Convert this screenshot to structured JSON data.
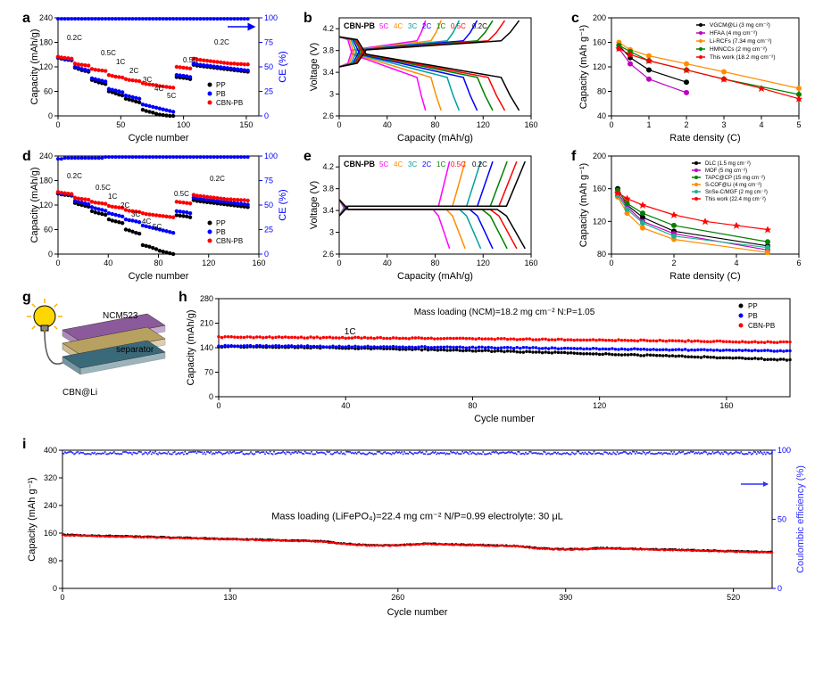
{
  "panel_a": {
    "type": "scatter",
    "label": "a",
    "xlabel": "Cycle number",
    "ylabel_left": "Capacity (mAh/g)",
    "ylabel_right": "CE (%)",
    "xlim": [
      0,
      160
    ],
    "xtick_step": 50,
    "ylim_left": [
      0,
      240
    ],
    "ytick_left_step": 60,
    "ylim_right": [
      0,
      100
    ],
    "ytick_right_step": 25,
    "series": {
      "PP": {
        "color": "#000000",
        "y": [
          142,
          140,
          138,
          137,
          136,
          118,
          115,
          112,
          110,
          108,
          88,
          85,
          82,
          80,
          78,
          60,
          58,
          55,
          52,
          50,
          42,
          40,
          38,
          35,
          33,
          15,
          12,
          10,
          8,
          5,
          3,
          2,
          1,
          0,
          0,
          95,
          94,
          93,
          92,
          90,
          125,
          123,
          122,
          121,
          120,
          119,
          118,
          117,
          116,
          115,
          114,
          113,
          112,
          111,
          110,
          109,
          108
        ]
      },
      "PB": {
        "color": "#0000ff",
        "y": [
          143,
          141,
          139,
          138,
          137,
          120,
          118,
          115,
          113,
          111,
          92,
          90,
          88,
          86,
          84,
          66,
          64,
          62,
          60,
          58,
          50,
          48,
          46,
          44,
          42,
          28,
          26,
          24,
          22,
          20,
          18,
          16,
          14,
          12,
          10,
          100,
          99,
          98,
          97,
          95,
          128,
          126,
          125,
          124,
          123,
          122,
          121,
          120,
          119,
          118,
          117,
          116,
          115,
          114,
          113,
          112,
          111
        ]
      },
      "CBN-PB": {
        "color": "#ff0000",
        "y": [
          145,
          143,
          142,
          141,
          140,
          128,
          126,
          125,
          124,
          123,
          115,
          113,
          112,
          111,
          110,
          100,
          98,
          96,
          95,
          94,
          90,
          88,
          87,
          86,
          85,
          80,
          78,
          77,
          76,
          75,
          73,
          72,
          71,
          70,
          69,
          120,
          119,
          118,
          117,
          116,
          140,
          138,
          137,
          136,
          135,
          134,
          133,
          132,
          131,
          130,
          129,
          128,
          128,
          127,
          127,
          126,
          126
        ]
      }
    },
    "ce": {
      "color": "#0000ff",
      "y": [
        99,
        99,
        99,
        99,
        99,
        99,
        99,
        99,
        99,
        99,
        99,
        99,
        99,
        99,
        99,
        99,
        99,
        99,
        99,
        99,
        99,
        99,
        99,
        99,
        99,
        99,
        99,
        99,
        99,
        99,
        99,
        99,
        99,
        99,
        99,
        99,
        99,
        99,
        99,
        99,
        99,
        99,
        99,
        99,
        99,
        99,
        99,
        99,
        99,
        99,
        99,
        99,
        99,
        99,
        99,
        99,
        99
      ]
    },
    "c_rates": {
      "0.2C_1": 3,
      "0.5C_1": 16,
      "1C": 26,
      "2C": 36,
      "3C": 46,
      "4C": 56,
      "5C": 66,
      "0.5C_2": 84,
      "0.2C_2": 110
    },
    "marker_size": 3,
    "background": "#ffffff",
    "label_fontsize": 11
  },
  "panel_b": {
    "type": "line",
    "label": "b",
    "xlabel": "Capacity (mAh/g)",
    "ylabel": "Voltage (V)",
    "xlim": [
      0,
      160
    ],
    "xtick_step": 40,
    "ylim": [
      2.6,
      4.4
    ],
    "ytick_step": 0.4,
    "title": "CBN-PB",
    "title_fontsize": 9,
    "series": {
      "0.2C": {
        "color": "#000000",
        "cap": 150
      },
      "0.5C": {
        "color": "#ff0000",
        "cap": 138
      },
      "1C": {
        "color": "#008000",
        "cap": 128
      },
      "2C": {
        "color": "#0000ff",
        "cap": 115
      },
      "3C": {
        "color": "#00a0a0",
        "cap": 100
      },
      "4C": {
        "color": "#ff8c00",
        "cap": 85
      },
      "5C": {
        "color": "#ff00ff",
        "cap": 72
      }
    },
    "line_width": 1.5,
    "background": "#ffffff",
    "label_fontsize": 11
  },
  "panel_c": {
    "type": "line-scatter",
    "label": "c",
    "xlabel": "Rate density (C)",
    "ylabel": "Capacity (mAh g⁻¹)",
    "xlim": [
      0,
      5
    ],
    "xtick_step": 1,
    "ylim": [
      40,
      200
    ],
    "ytick_step": 40,
    "series": {
      "VGCM@Li (3 mg cm⁻²)": {
        "color": "#000000",
        "marker": "circle",
        "x": [
          0.2,
          0.5,
          1,
          2
        ],
        "y": [
          155,
          135,
          115,
          95
        ]
      },
      "HFAA (4 mg cm⁻²)": {
        "color": "#c000c0",
        "marker": "circle",
        "x": [
          0.2,
          0.5,
          1,
          2
        ],
        "y": [
          150,
          125,
          100,
          78
        ]
      },
      "Li-RCFs (7.34 mg cm⁻²)": {
        "color": "#ff8c00",
        "marker": "triangle",
        "x": [
          0.2,
          0.5,
          1,
          2,
          3,
          5
        ],
        "y": [
          160,
          148,
          138,
          125,
          112,
          85
        ]
      },
      "HMNCCs (2 mg cm⁻²)": {
        "color": "#008000",
        "marker": "circle",
        "x": [
          0.2,
          0.5,
          1,
          2,
          3,
          5
        ],
        "y": [
          155,
          145,
          130,
          115,
          100,
          75
        ]
      },
      "This work (18.2 mg cm⁻²)": {
        "color": "#ff0000",
        "marker": "star",
        "x": [
          0.2,
          0.5,
          1,
          2,
          3,
          4,
          5
        ],
        "y": [
          150,
          140,
          130,
          115,
          100,
          85,
          68
        ]
      }
    },
    "marker_size": 4,
    "line_width": 1.2,
    "background": "#ffffff",
    "label_fontsize": 11
  },
  "panel_d": {
    "type": "scatter",
    "label": "d",
    "xlabel": "Cycle number",
    "ylabel_left": "Capacity (mAh/g)",
    "ylabel_right": "CE (%)",
    "xlim": [
      0,
      160
    ],
    "xtick_step": 40,
    "ylim_left": [
      0,
      240
    ],
    "ytick_left_step": 60,
    "ylim_right": [
      0,
      100
    ],
    "ytick_right_step": 25,
    "series": {
      "PP": {
        "color": "#000000",
        "y": [
          148,
          146,
          145,
          144,
          143,
          125,
          122,
          120,
          118,
          116,
          105,
          102,
          100,
          98,
          96,
          85,
          82,
          80,
          78,
          76,
          60,
          58,
          55,
          52,
          50,
          22,
          20,
          18,
          15,
          12,
          8,
          6,
          4,
          2,
          0,
          95,
          94,
          93,
          92,
          90,
          132,
          130,
          129,
          128,
          127,
          126,
          125,
          124,
          123,
          122,
          121,
          120,
          119,
          118,
          117,
          116,
          115
        ]
      },
      "PB": {
        "color": "#0000ff",
        "y": [
          150,
          148,
          147,
          146,
          145,
          130,
          128,
          126,
          124,
          122,
          115,
          112,
          110,
          108,
          106,
          100,
          98,
          96,
          94,
          92,
          85,
          83,
          82,
          80,
          78,
          70,
          68,
          66,
          64,
          62,
          60,
          58,
          56,
          54,
          52,
          105,
          104,
          103,
          102,
          100,
          138,
          136,
          135,
          134,
          133,
          132,
          131,
          130,
          129,
          128,
          127,
          126,
          125,
          124,
          123,
          122,
          121
        ]
      },
      "CBN-PB": {
        "color": "#ff0000",
        "y": [
          152,
          150,
          149,
          148,
          147,
          138,
          136,
          135,
          134,
          133,
          128,
          126,
          125,
          124,
          123,
          118,
          116,
          115,
          114,
          113,
          108,
          106,
          105,
          104,
          103,
          100,
          98,
          97,
          96,
          95,
          94,
          93,
          92,
          91,
          90,
          128,
          127,
          126,
          125,
          124,
          145,
          143,
          142,
          141,
          140,
          139,
          138,
          137,
          136,
          135,
          134,
          134,
          133,
          133,
          132,
          132,
          131
        ]
      }
    },
    "ce": {
      "color": "#0000ff",
      "y": [
        97,
        97,
        98,
        98,
        98,
        98,
        98,
        98,
        98,
        98,
        98,
        98,
        98,
        98,
        99,
        99,
        99,
        99,
        99,
        99,
        99,
        99,
        99,
        99,
        99,
        99,
        99,
        99,
        99,
        99,
        99,
        99,
        99,
        99,
        99,
        99,
        99,
        99,
        99,
        99,
        99,
        99,
        99,
        99,
        99,
        99,
        99,
        99,
        99,
        99,
        99,
        99,
        99,
        99,
        99,
        99,
        99
      ]
    },
    "c_rates": {
      "0.2C_1": 3,
      "0.5C_1": 15,
      "1C": 25,
      "2C": 35,
      "3C": 45,
      "4C": 55,
      "5C": 65,
      "0.5C_2": 80,
      "0.2C_2": 115
    },
    "marker_size": 3,
    "background": "#ffffff",
    "label_fontsize": 11
  },
  "panel_e": {
    "type": "line",
    "label": "e",
    "xlabel": "Capacity (mAh/g)",
    "ylabel": "Voltage (V)",
    "xlim": [
      0,
      160
    ],
    "xtick_step": 40,
    "ylim": [
      2.6,
      4.4
    ],
    "ytick_step": 0.4,
    "title": "CBN-PB",
    "title_fontsize": 9,
    "series": {
      "0.2C": {
        "color": "#000000",
        "cap": 155
      },
      "0.5C": {
        "color": "#ff0000",
        "cap": 148
      },
      "1C": {
        "color": "#008000",
        "cap": 140
      },
      "2C": {
        "color": "#0000ff",
        "cap": 128
      },
      "3C": {
        "color": "#00a0a0",
        "cap": 118
      },
      "4C": {
        "color": "#ff8c00",
        "cap": 105
      },
      "5C": {
        "color": "#ff00ff",
        "cap": 92
      }
    },
    "line_width": 1.5,
    "background": "#ffffff",
    "label_fontsize": 11
  },
  "panel_f": {
    "type": "line-scatter",
    "label": "f",
    "xlabel": "Rate density (C)",
    "ylabel": "Capacity (mAh g⁻¹)",
    "xlim": [
      0,
      6
    ],
    "xtick_step": 2,
    "ylim": [
      80,
      200
    ],
    "ytick_step": 40,
    "series": {
      "DLC (1.5 mg cm⁻²)": {
        "color": "#000000",
        "marker": "square",
        "x": [
          0.2,
          0.5,
          1,
          2,
          5
        ],
        "y": [
          160,
          140,
          125,
          108,
          90
        ]
      },
      "MOF (5 mg cm⁻²)": {
        "color": "#c000c0",
        "marker": "diamond",
        "x": [
          0.2,
          0.5,
          1,
          2,
          5
        ],
        "y": [
          155,
          138,
          120,
          105,
          85
        ]
      },
      "TAPC@CP (15 mg cm⁻²)": {
        "color": "#008000",
        "marker": "triangle",
        "x": [
          0.2,
          0.5,
          1,
          2,
          5
        ],
        "y": [
          158,
          142,
          130,
          115,
          95
        ]
      },
      "S-COF@Li (4 mg cm⁻²)": {
        "color": "#ff8c00",
        "marker": "circle",
        "x": [
          0.2,
          0.5,
          1,
          2,
          5
        ],
        "y": [
          150,
          130,
          112,
          98,
          82
        ]
      },
      "SnSe-C/MGF (2 mg cm⁻²)": {
        "color": "#20b090",
        "marker": "circle",
        "x": [
          0.2,
          0.5,
          1,
          2,
          5
        ],
        "y": [
          152,
          135,
          118,
          102,
          88
        ]
      },
      "This work (22.4 mg cm⁻²)": {
        "color": "#ff0000",
        "marker": "star",
        "x": [
          0.2,
          0.5,
          1,
          2,
          3,
          4,
          5
        ],
        "y": [
          155,
          148,
          140,
          128,
          120,
          115,
          110
        ]
      }
    },
    "marker_size": 4,
    "line_width": 1.2,
    "background": "#ffffff",
    "label_fontsize": 11
  },
  "panel_g": {
    "type": "infographic",
    "label": "g",
    "layers": {
      "NCM523": {
        "label": "NCM523",
        "color": "#8b5a9b"
      },
      "separator": {
        "label": "separator",
        "color": "#b8a060"
      },
      "CBN_Li": {
        "label": "CBN@Li",
        "color": "#3a6a7a"
      }
    },
    "bulb_color": "#ffd700",
    "label_fontsize": 10
  },
  "panel_h": {
    "type": "scatter",
    "label": "h",
    "xlabel": "Cycle number",
    "ylabel": "Capacity (mAh/g)",
    "xlim": [
      0,
      180
    ],
    "xtick_step": 40,
    "ylim": [
      0,
      280
    ],
    "ytick_step": 70,
    "annotation": "Mass loading (NCM)=18.2 mg cm⁻²   N:P=1.05",
    "rate_label": "1C",
    "series": {
      "PP": {
        "color": "#000000",
        "y_start": 143,
        "y_end": 105
      },
      "PB": {
        "color": "#0000ff",
        "y_start": 145,
        "y_end": 130
      },
      "CBN-PB": {
        "color": "#ff0000",
        "y_start": 170,
        "y_end": 155
      }
    },
    "marker_size": 2.5,
    "background": "#ffffff",
    "label_fontsize": 11
  },
  "panel_i": {
    "type": "scatter",
    "label": "i",
    "xlabel": "Cycle number",
    "ylabel_left": "Capacity (mAh g⁻¹)",
    "ylabel_right": "Coulombic efficiency (%)",
    "xlim": [
      0,
      550
    ],
    "xtick_step": 130,
    "ylim_left": [
      0,
      400
    ],
    "ytick_left_step": 80,
    "ylim_right": [
      0,
      100
    ],
    "ytick_right_step": 50,
    "annotation": "Mass loading (LiFePO₄)=22.4 mg cm⁻²   N/P=0.99  electrolyte: 30 μL",
    "cap_series": {
      "color_charge": "#000000",
      "color_discharge": "#ff0000",
      "y_start": 155,
      "y_end": 105
    },
    "ce": {
      "color": "#3030ff",
      "y": 98
    },
    "marker_size": 2,
    "background": "#ffffff",
    "label_fontsize": 11
  }
}
